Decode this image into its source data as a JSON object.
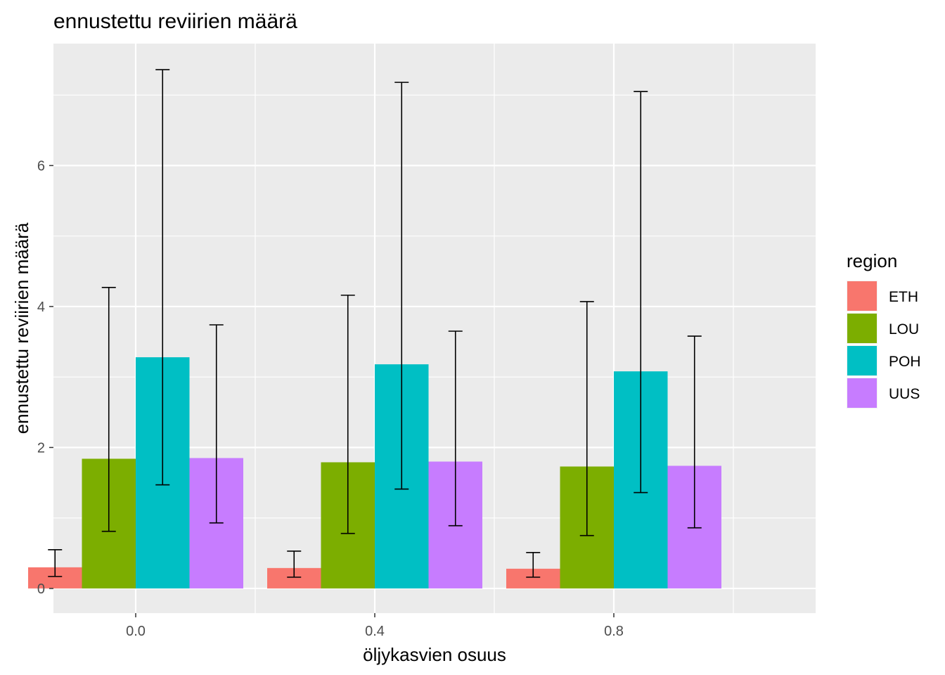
{
  "chart_data": {
    "type": "bar",
    "title": "ennustettu reviirien määrä",
    "xlabel": "öljykasvien osuus",
    "ylabel": "ennustettu reviirien määrä",
    "categories": [
      "0.0",
      "0.4",
      "0.8"
    ],
    "y_ticks": [
      "0",
      "2",
      "4",
      "6"
    ],
    "ylim": [
      -0.35,
      7.73
    ],
    "grid": true,
    "legend": {
      "title": "region",
      "position": "right"
    },
    "series": [
      {
        "name": "ETH",
        "color": "#F8766D",
        "values": [
          0.3,
          0.29,
          0.28
        ],
        "lower": [
          0.17,
          0.16,
          0.16
        ],
        "upper": [
          0.55,
          0.53,
          0.51
        ]
      },
      {
        "name": "LOU",
        "color": "#7CAE00",
        "values": [
          1.84,
          1.79,
          1.73
        ],
        "lower": [
          0.81,
          0.78,
          0.75
        ],
        "upper": [
          4.27,
          4.16,
          4.07
        ]
      },
      {
        "name": "POH",
        "color": "#00BFC4",
        "values": [
          3.28,
          3.18,
          3.08
        ],
        "lower": [
          1.47,
          1.41,
          1.36
        ],
        "upper": [
          7.36,
          7.18,
          7.05
        ]
      },
      {
        "name": "UUS",
        "color": "#C77CFF",
        "values": [
          1.85,
          1.8,
          1.74
        ],
        "lower": [
          0.93,
          0.89,
          0.86
        ],
        "upper": [
          3.74,
          3.65,
          3.58
        ]
      }
    ]
  }
}
